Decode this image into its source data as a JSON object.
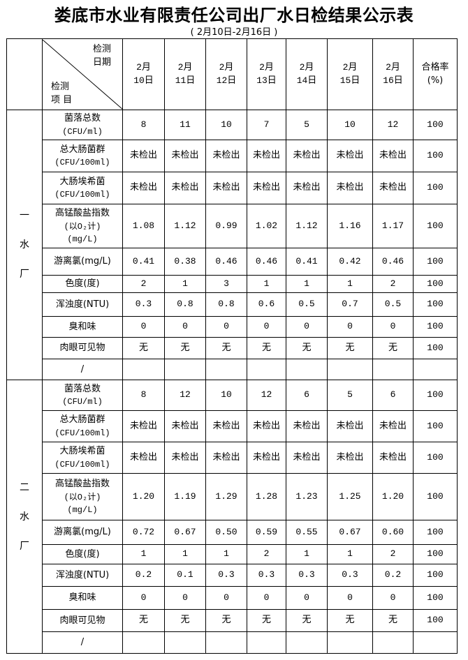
{
  "title": "娄底市水业有限责任公司出厂水日检结果公示表",
  "subtitle": "(    2月10日-2月16日     )",
  "header": {
    "diag_top": [
      "检测",
      "日期"
    ],
    "diag_bottom": [
      "检测",
      "项 目"
    ],
    "dates": [
      [
        "2月",
        "10日"
      ],
      [
        "2月",
        "11日"
      ],
      [
        "2月",
        "12日"
      ],
      [
        "2月",
        "13日"
      ],
      [
        "2月",
        "14日"
      ],
      [
        "2月",
        "15日"
      ],
      [
        "2月",
        "16日"
      ]
    ],
    "pass_rate": [
      "合格率",
      "(%)"
    ]
  },
  "items": [
    [
      "菌落总数",
      "(CFU/ml)"
    ],
    [
      "总大肠菌群",
      "(CFU/100ml)"
    ],
    [
      "大肠埃希菌",
      "(CFU/100ml)"
    ],
    [
      "高锰酸盐指数",
      "(以O₂计)",
      "(mg/L)"
    ],
    [
      "游离氯(mg/L)"
    ],
    [
      "色度(度)"
    ],
    [
      "浑浊度(NTU)"
    ],
    [
      "臭和味"
    ],
    [
      "肉眼可见物"
    ],
    [
      "/"
    ]
  ],
  "plants": [
    {
      "name": [
        "一",
        "水",
        "厂"
      ],
      "rows": [
        {
          "values": [
            "8",
            "11",
            "10",
            "7",
            "5",
            "10",
            "12"
          ],
          "rate": "100"
        },
        {
          "values": [
            "未检出",
            "未检出",
            "未检出",
            "未检出",
            "未检出",
            "未检出",
            "未检出"
          ],
          "rate": "100"
        },
        {
          "values": [
            "未检出",
            "未检出",
            "未检出",
            "未检出",
            "未检出",
            "未检出",
            "未检出"
          ],
          "rate": "100"
        },
        {
          "values": [
            "1.08",
            "1.12",
            "0.99",
            "1.02",
            "1.12",
            "1.16",
            "1.17"
          ],
          "rate": "100"
        },
        {
          "values": [
            "0.41",
            "0.38",
            "0.46",
            "0.46",
            "0.41",
            "0.42",
            "0.46"
          ],
          "rate": "100"
        },
        {
          "values": [
            "2",
            "1",
            "3",
            "1",
            "1",
            "1",
            "2"
          ],
          "rate": "100"
        },
        {
          "values": [
            "0.3",
            "0.8",
            "0.8",
            "0.6",
            "0.5",
            "0.7",
            "0.5"
          ],
          "rate": "100"
        },
        {
          "values": [
            "0",
            "0",
            "0",
            "0",
            "0",
            "0",
            "0"
          ],
          "rate": "100"
        },
        {
          "values": [
            "无",
            "无",
            "无",
            "无",
            "无",
            "无",
            "无"
          ],
          "rate": "100"
        },
        {
          "values": [
            "",
            "",
            "",
            "",
            "",
            "",
            ""
          ],
          "rate": ""
        }
      ]
    },
    {
      "name": [
        "二",
        "水",
        "厂"
      ],
      "rows": [
        {
          "values": [
            "8",
            "12",
            "10",
            "12",
            "6",
            "5",
            "6"
          ],
          "rate": "100"
        },
        {
          "values": [
            "未检出",
            "未检出",
            "未检出",
            "未检出",
            "未检出",
            "未检出",
            "未检出"
          ],
          "rate": "100"
        },
        {
          "values": [
            "未检出",
            "未检出",
            "未检出",
            "未检出",
            "未检出",
            "未检出",
            "未检出"
          ],
          "rate": "100"
        },
        {
          "values": [
            "1.20",
            "1.19",
            "1.29",
            "1.28",
            "1.23",
            "1.25",
            "1.20"
          ],
          "rate": "100"
        },
        {
          "values": [
            "0.72",
            "0.67",
            "0.50",
            "0.59",
            "0.55",
            "0.67",
            "0.60"
          ],
          "rate": "100"
        },
        {
          "values": [
            "1",
            "1",
            "1",
            "2",
            "1",
            "1",
            "2"
          ],
          "rate": "100"
        },
        {
          "values": [
            "0.2",
            "0.1",
            "0.3",
            "0.3",
            "0.3",
            "0.3",
            "0.2"
          ],
          "rate": "100"
        },
        {
          "values": [
            "0",
            "0",
            "0",
            "0",
            "0",
            "0",
            "0"
          ],
          "rate": "100"
        },
        {
          "values": [
            "无",
            "无",
            "无",
            "无",
            "无",
            "无",
            "无"
          ],
          "rate": "100"
        },
        {
          "values": [
            "",
            "",
            "",
            "",
            "",
            "",
            ""
          ],
          "rate": ""
        }
      ]
    }
  ]
}
